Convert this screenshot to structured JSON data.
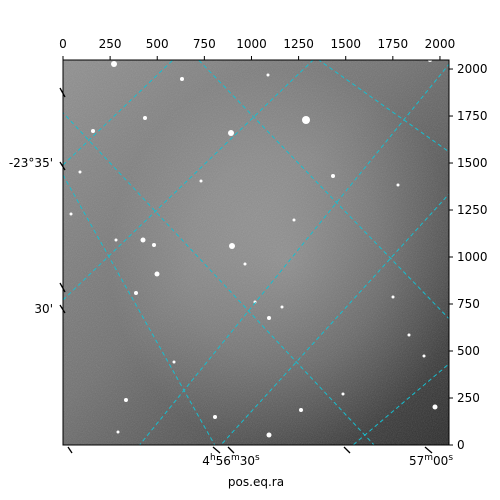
{
  "chart_data": {
    "type": "image",
    "image_kind": "grayscale astronomical image with celestial coordinate grid overlay",
    "colormap": "gray",
    "grid_color": "#17becf",
    "grid_style": "dashed",
    "xlabel": "pos.eq.ra",
    "ylabel": "",
    "pixel_axes": {
      "x_range": [
        0,
        2048
      ],
      "y_range": [
        0,
        2048
      ],
      "x_ticks": [
        0,
        250,
        500,
        750,
        1000,
        1250,
        1500,
        1750,
        2000
      ],
      "y_ticks": [
        0,
        250,
        500,
        750,
        1000,
        1250,
        1500,
        1750,
        2000
      ]
    },
    "world_axes": {
      "ra_tick_labels": [
        {
          "label_main": "4",
          "sup1": "h",
          "mid": "56",
          "sup2": "m",
          "end": "30",
          "sup3": "s"
        },
        {
          "label_main": "57",
          "sup1": "m",
          "mid": "00",
          "sup2": "s",
          "end": "",
          "sup3": ""
        }
      ],
      "dec_tick_labels": [
        "-23°35'",
        "30'"
      ]
    }
  }
}
